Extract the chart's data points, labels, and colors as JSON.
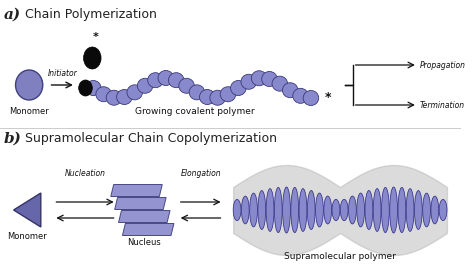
{
  "bg_color": "#ffffff",
  "monomer_color": "#8080c0",
  "monomer_edge": "#404080",
  "initiator_color": "#0a0a0a",
  "polymer_color": "#8888cc",
  "polymer_edge": "#3a3a7a",
  "arrow_color": "#111111",
  "label_a": "a)",
  "label_b": "b)",
  "title_a": "Chain Polymerization",
  "title_b": "Supramolecular Chain Copolymerization",
  "text_monomer": "Monomer",
  "text_initiator": "Initiator",
  "text_growing": "Growing covalent polymer",
  "text_propagation": "Propagation",
  "text_termination": "Termination",
  "text_monomer_b": "Monomer",
  "text_nucleus": "Nucleus",
  "text_nucleation": "Nucleation",
  "text_elongation": "Elongation",
  "text_supramolecular": "Supramolecular polymer",
  "triangle_color": "#6666aa",
  "triangle_edge": "#333366",
  "nucleus_color": "#8888cc",
  "supra_color": "#8888cc",
  "supra_edge": "#333388",
  "helix_bg": "#b0b0b0"
}
